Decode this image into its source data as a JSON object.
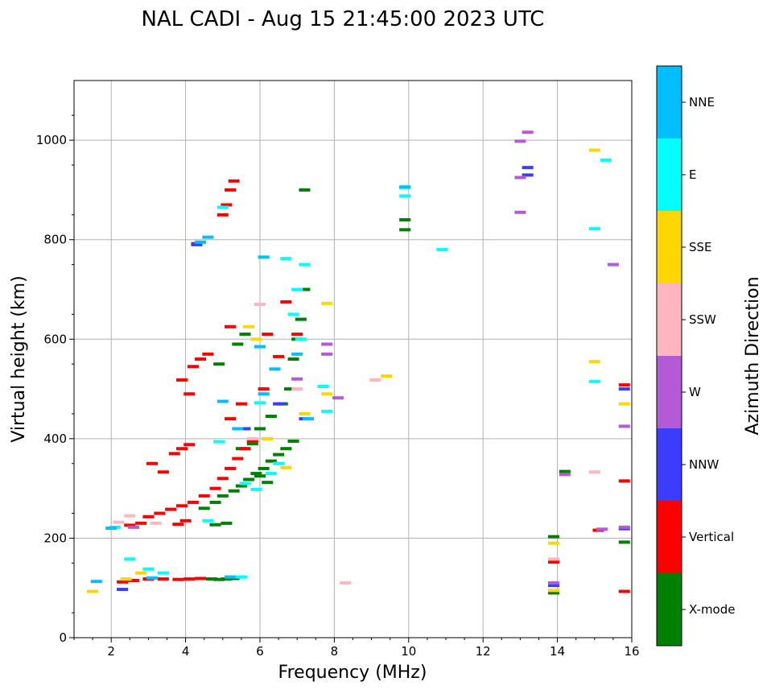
{
  "chart_data": {
    "type": "scatter",
    "title": "NAL CADI - Aug 15 21:45:00 2023 UTC",
    "xlabel": "Frequency (MHz)",
    "ylabel": "Virtual height (km)",
    "xlim": [
      1,
      16
    ],
    "ylim": [
      0,
      1120
    ],
    "xticks": [
      2,
      4,
      6,
      8,
      10,
      12,
      14,
      16
    ],
    "yticks": [
      0,
      200,
      400,
      600,
      800,
      1000
    ],
    "grid": true,
    "colorbar": {
      "title": "Azimuth Direction",
      "categories": [
        {
          "name": "X-mode",
          "color": "#008000"
        },
        {
          "name": "Vertical",
          "color": "#ff0000"
        },
        {
          "name": "NNW",
          "color": "#3c3cff"
        },
        {
          "name": "W",
          "color": "#b45ad6"
        },
        {
          "name": "SSW",
          "color": "#ffb6c1"
        },
        {
          "name": "SSE",
          "color": "#ffd700"
        },
        {
          "name": "E",
          "color": "#00ffff"
        },
        {
          "name": "NNE",
          "color": "#00bfff"
        }
      ]
    },
    "series": [
      {
        "name": "X-mode",
        "points": [
          [
            4.7,
            118
          ],
          [
            4.9,
            117
          ],
          [
            5.1,
            118
          ],
          [
            5.3,
            119
          ],
          [
            4.5,
            260
          ],
          [
            4.8,
            272
          ],
          [
            5.0,
            285
          ],
          [
            5.3,
            295
          ],
          [
            5.5,
            305
          ],
          [
            5.7,
            318
          ],
          [
            5.9,
            330
          ],
          [
            6.1,
            340
          ],
          [
            6.3,
            355
          ],
          [
            6.5,
            368
          ],
          [
            6.7,
            380
          ],
          [
            6.9,
            395
          ],
          [
            5.5,
            380
          ],
          [
            5.8,
            390
          ],
          [
            6.0,
            420
          ],
          [
            6.3,
            445
          ],
          [
            6.6,
            470
          ],
          [
            6.8,
            500
          ],
          [
            6.9,
            560
          ],
          [
            7.0,
            600
          ],
          [
            7.1,
            640
          ],
          [
            7.2,
            700
          ],
          [
            5.1,
            230
          ],
          [
            4.8,
            227
          ],
          [
            7.2,
            900
          ],
          [
            9.9,
            820
          ],
          [
            9.9,
            840
          ],
          [
            13.9,
            90
          ],
          [
            13.9,
            203
          ],
          [
            14.2,
            334
          ],
          [
            15.8,
            192
          ],
          [
            6.2,
            312
          ],
          [
            6.0,
            325
          ],
          [
            5.4,
            590
          ],
          [
            5.6,
            610
          ],
          [
            4.9,
            550
          ]
        ]
      },
      {
        "name": "Vertical",
        "points": [
          [
            2.3,
            112
          ],
          [
            2.6,
            115
          ],
          [
            3.0,
            118
          ],
          [
            3.4,
            118
          ],
          [
            3.8,
            117
          ],
          [
            4.1,
            118
          ],
          [
            4.4,
            119
          ],
          [
            2.5,
            226
          ],
          [
            2.8,
            230
          ],
          [
            3.0,
            243
          ],
          [
            3.3,
            250
          ],
          [
            3.6,
            258
          ],
          [
            3.9,
            265
          ],
          [
            4.2,
            272
          ],
          [
            4.5,
            285
          ],
          [
            4.8,
            300
          ],
          [
            5.0,
            320
          ],
          [
            5.2,
            340
          ],
          [
            5.4,
            360
          ],
          [
            5.6,
            380
          ],
          [
            5.8,
            395
          ],
          [
            3.7,
            370
          ],
          [
            3.9,
            380
          ],
          [
            4.1,
            388
          ],
          [
            3.8,
            228
          ],
          [
            4.0,
            235
          ],
          [
            4.2,
            545
          ],
          [
            4.4,
            560
          ],
          [
            4.6,
            570
          ],
          [
            3.9,
            518
          ],
          [
            4.1,
            490
          ],
          [
            4.3,
            792
          ],
          [
            5.0,
            850
          ],
          [
            5.1,
            870
          ],
          [
            5.2,
            900
          ],
          [
            5.3,
            918
          ],
          [
            5.2,
            625
          ],
          [
            6.2,
            610
          ],
          [
            6.5,
            565
          ],
          [
            6.7,
            675
          ],
          [
            7.0,
            610
          ],
          [
            5.2,
            440
          ],
          [
            5.5,
            470
          ],
          [
            6.1,
            500
          ],
          [
            13.9,
            152
          ],
          [
            15.1,
            216
          ],
          [
            15.8,
            93
          ],
          [
            15.8,
            315
          ],
          [
            15.8,
            508
          ],
          [
            3.4,
            333
          ],
          [
            3.1,
            350
          ]
        ]
      },
      {
        "name": "NNW",
        "points": [
          [
            13.2,
            930
          ],
          [
            13.2,
            945
          ],
          [
            15.8,
            500
          ],
          [
            15.8,
            219
          ],
          [
            7.2,
            440
          ],
          [
            2.3,
            97
          ],
          [
            4.3,
            790
          ],
          [
            5.6,
            420
          ],
          [
            6.5,
            470
          ],
          [
            13.9,
            105
          ]
        ]
      },
      {
        "name": "W",
        "points": [
          [
            13.0,
            998
          ],
          [
            13.2,
            1016
          ],
          [
            13.0,
            925
          ],
          [
            13.0,
            855
          ],
          [
            15.5,
            750
          ],
          [
            15.8,
            425
          ],
          [
            15.8,
            222
          ],
          [
            14.2,
            328
          ],
          [
            7.8,
            590
          ],
          [
            7.8,
            570
          ],
          [
            8.1,
            482
          ],
          [
            13.9,
            110
          ],
          [
            15.2,
            218
          ],
          [
            2.6,
            222
          ],
          [
            7.0,
            520
          ]
        ]
      },
      {
        "name": "SSW",
        "points": [
          [
            9.1,
            518
          ],
          [
            8.3,
            110
          ],
          [
            15.0,
            333
          ],
          [
            13.9,
            158
          ],
          [
            2.5,
            245
          ],
          [
            7.0,
            500
          ],
          [
            6.0,
            670
          ],
          [
            5.8,
            400
          ],
          [
            3.2,
            230
          ],
          [
            2.2,
            232
          ]
        ]
      },
      {
        "name": "SSE",
        "points": [
          [
            15.0,
            980
          ],
          [
            15.0,
            555
          ],
          [
            15.8,
            470
          ],
          [
            9.4,
            526
          ],
          [
            7.8,
            672
          ],
          [
            7.8,
            490
          ],
          [
            6.7,
            342
          ],
          [
            5.7,
            625
          ],
          [
            5.9,
            600
          ],
          [
            13.9,
            95
          ],
          [
            13.9,
            190
          ],
          [
            2.8,
            130
          ],
          [
            2.4,
            118
          ],
          [
            1.5,
            93
          ],
          [
            6.2,
            400
          ],
          [
            7.2,
            450
          ]
        ]
      },
      {
        "name": "E",
        "points": [
          [
            15.3,
            960
          ],
          [
            15.0,
            822
          ],
          [
            15.0,
            515
          ],
          [
            10.9,
            780
          ],
          [
            9.9,
            888
          ],
          [
            9.9,
            905
          ],
          [
            6.7,
            762
          ],
          [
            7.2,
            750
          ],
          [
            7.0,
            700
          ],
          [
            6.0,
            472
          ],
          [
            5.6,
            310
          ],
          [
            5.9,
            298
          ],
          [
            6.3,
            330
          ],
          [
            6.5,
            350
          ],
          [
            4.9,
            394
          ],
          [
            3.0,
            138
          ],
          [
            2.5,
            158
          ],
          [
            3.4,
            130
          ],
          [
            2.1,
            222
          ],
          [
            5.5,
            122
          ],
          [
            5.0,
            865
          ],
          [
            4.6,
            235
          ],
          [
            7.7,
            505
          ],
          [
            7.8,
            455
          ],
          [
            7.1,
            600
          ],
          [
            6.9,
            650
          ]
        ]
      },
      {
        "name": "NNE",
        "points": [
          [
            4.4,
            795
          ],
          [
            4.6,
            805
          ],
          [
            6.1,
            765
          ],
          [
            9.9,
            906
          ],
          [
            6.0,
            585
          ],
          [
            6.4,
            540
          ],
          [
            7.0,
            570
          ],
          [
            7.3,
            440
          ],
          [
            5.0,
            475
          ],
          [
            3.1,
            120
          ],
          [
            2.0,
            220
          ],
          [
            5.2,
            122
          ],
          [
            1.6,
            113
          ],
          [
            5.4,
            420
          ],
          [
            6.1,
            490
          ]
        ]
      }
    ]
  }
}
